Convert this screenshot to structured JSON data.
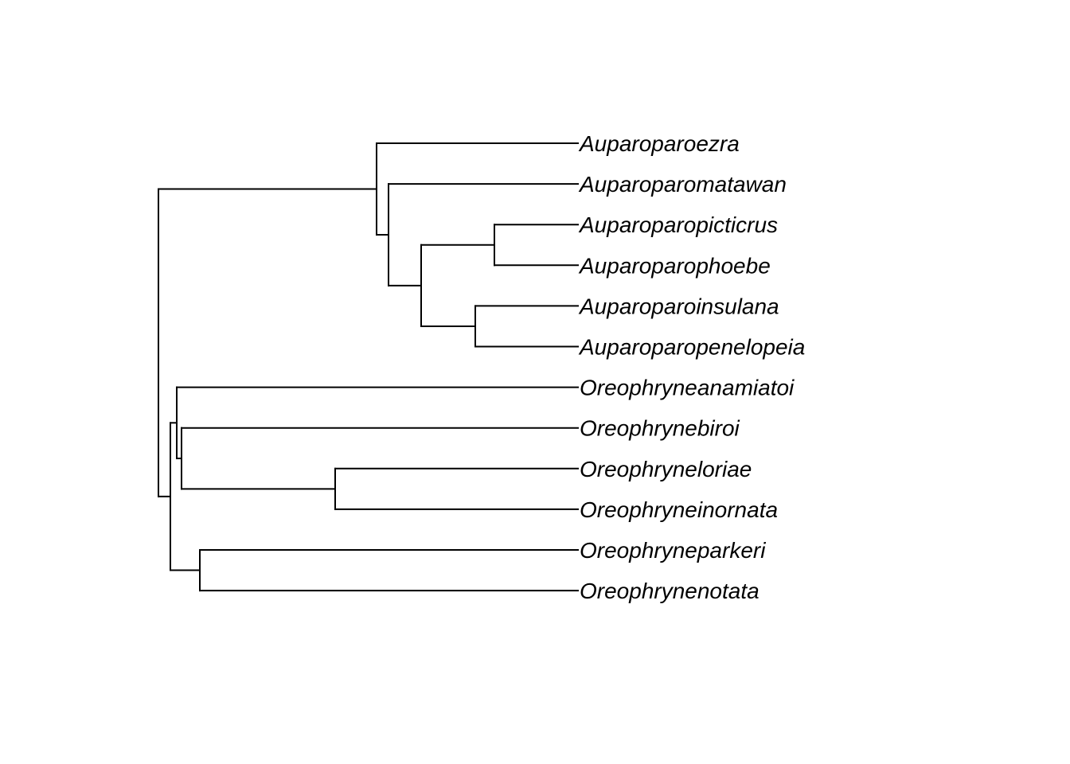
{
  "tree": {
    "line_color": "#000000",
    "label_color": "#000000",
    "tips": [
      "Auparoparoezra",
      "Auparoparomatawan",
      "Auparoparopicticrus",
      "Auparoparophoebe",
      "Auparoparoinsulana",
      "Auparoparopenelopeia",
      "Oreophryneanamiatoi",
      "Oreophrynebiroi",
      "Oreophryneloriae",
      "Oreophryneinornata",
      "Oreophryneparkeri",
      "Oreophrynenotata"
    ],
    "topology": "((Auparoparoezra,(Auparoparomatawan,((Auparoparopicticrus,Auparoparophoebe),(Auparoparoinsulana,Auparoparopenelopeia)))),((Oreophryneanamiatoi,(Oreophrynebiroi,(Oreophryneloriae,Oreophryneinornata))),(Oreophryneparkeri,Oreophrynenotata)));"
  }
}
